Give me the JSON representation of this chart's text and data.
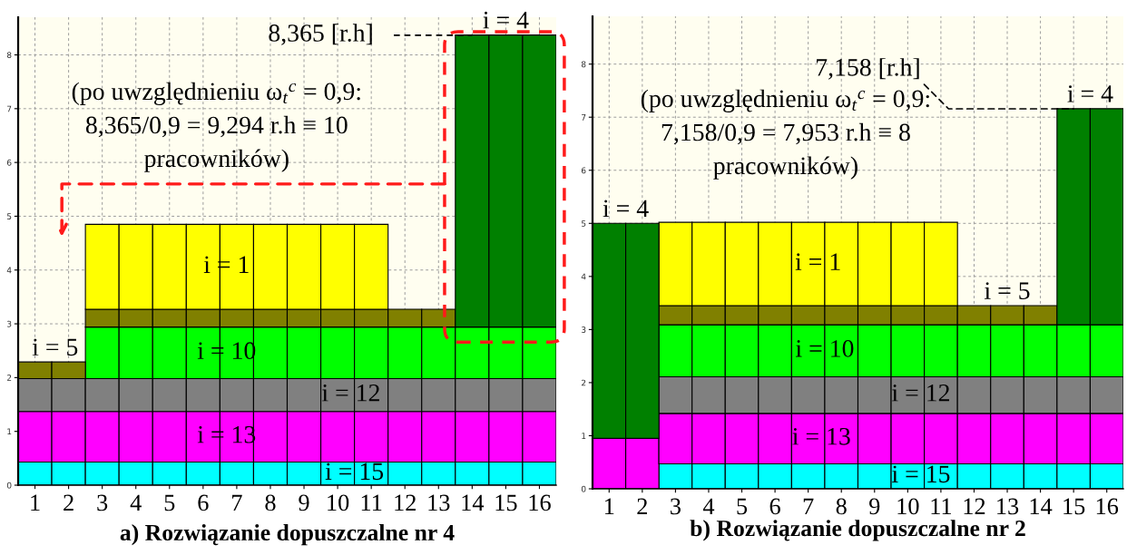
{
  "chart_data": [
    {
      "type": "bar",
      "stacked": true,
      "title": "a) Rozwiązanie dopuszczalne nr 4",
      "categories": [
        "1",
        "2",
        "3",
        "4",
        "5",
        "6",
        "7",
        "8",
        "9",
        "10",
        "11",
        "12",
        "13",
        "14",
        "15",
        "16"
      ],
      "series": [
        {
          "name": "i = 15",
          "color": "#00ffff",
          "values": [
            0.43,
            0.43,
            0.43,
            0.43,
            0.43,
            0.43,
            0.43,
            0.43,
            0.43,
            0.43,
            0.43,
            0.43,
            0.43,
            0.43,
            0.43,
            0.43
          ]
        },
        {
          "name": "i = 13",
          "color": "#ff00ff",
          "values": [
            0.94,
            0.94,
            0.94,
            0.94,
            0.94,
            0.94,
            0.94,
            0.94,
            0.94,
            0.94,
            0.94,
            0.94,
            0.94,
            0.94,
            0.94,
            0.94
          ]
        },
        {
          "name": "i = 12",
          "color": "#808080",
          "values": [
            0.61,
            0.61,
            0.61,
            0.61,
            0.61,
            0.61,
            0.61,
            0.61,
            0.61,
            0.61,
            0.61,
            0.61,
            0.61,
            0.61,
            0.61,
            0.61
          ]
        },
        {
          "name": "i = 10",
          "color": "#00ff00",
          "values": [
            null,
            null,
            0.96,
            0.96,
            0.96,
            0.96,
            0.96,
            0.96,
            0.96,
            0.96,
            0.96,
            0.96,
            0.96,
            0.96,
            0.96,
            0.96
          ]
        },
        {
          "name": "i = 5",
          "color": "#808000",
          "values": [
            0.31,
            0.31,
            0.33,
            0.33,
            0.33,
            0.33,
            0.33,
            0.33,
            0.33,
            0.33,
            0.33,
            0.33,
            0.33,
            null,
            null,
            null
          ]
        },
        {
          "name": "i = 1",
          "color": "#ffff00",
          "values": [
            null,
            null,
            1.58,
            1.58,
            1.58,
            1.58,
            1.58,
            1.58,
            1.58,
            1.58,
            1.58,
            null,
            null,
            null,
            null,
            null
          ]
        },
        {
          "name": "i = 4",
          "color": "#008000",
          "values": [
            null,
            null,
            null,
            null,
            null,
            null,
            null,
            null,
            null,
            null,
            null,
            null,
            null,
            5.43,
            5.43,
            5.43
          ]
        }
      ],
      "ylim": [
        0,
        8.7
      ],
      "yticks": [
        0,
        1,
        2,
        3,
        4,
        5,
        6,
        7,
        8
      ],
      "grid": true,
      "ref_lines": [
        {
          "axis": "y",
          "value": 8.365,
          "label": "8,365 [r.h]",
          "color": "#000000",
          "line_style": "dashed"
        }
      ],
      "annotations": [
        "(po uwzględnieniu ω$_{t}$$^{c}$ = 0,9:\n8,365/0,9 = 9,294 r.h ≡ 10\npracowników)"
      ]
    },
    {
      "type": "bar",
      "stacked": true,
      "title": "b) Rozwiązanie dopuszczalne nr 2",
      "categories": [
        "1",
        "2",
        "3",
        "4",
        "5",
        "6",
        "7",
        "8",
        "9",
        "10",
        "11",
        "12",
        "13",
        "14",
        "15",
        "16"
      ],
      "series": [
        {
          "name": "i = 15",
          "color": "#00ffff",
          "values": [
            null,
            null,
            0.47,
            0.47,
            0.47,
            0.47,
            0.47,
            0.47,
            0.47,
            0.47,
            0.47,
            0.47,
            0.47,
            0.47,
            0.47,
            0.47
          ]
        },
        {
          "name": "i = 13",
          "color": "#ff00ff",
          "values": [
            0.95,
            0.95,
            0.95,
            0.95,
            0.95,
            0.95,
            0.95,
            0.95,
            0.95,
            0.95,
            0.95,
            0.95,
            0.95,
            0.95,
            0.95,
            0.95
          ]
        },
        {
          "name": "i = 12",
          "color": "#808080",
          "values": [
            null,
            null,
            0.69,
            0.69,
            0.69,
            0.69,
            0.69,
            0.69,
            0.69,
            0.69,
            0.69,
            0.69,
            0.69,
            0.69,
            0.69,
            0.69
          ]
        },
        {
          "name": "i = 10",
          "color": "#00ff00",
          "values": [
            null,
            null,
            0.98,
            0.98,
            0.98,
            0.98,
            0.98,
            0.98,
            0.98,
            0.98,
            0.98,
            0.98,
            0.98,
            0.98,
            0.98,
            0.98
          ]
        },
        {
          "name": "i = 5",
          "color": "#808000",
          "values": [
            null,
            null,
            0.36,
            0.36,
            0.36,
            0.36,
            0.36,
            0.36,
            0.36,
            0.36,
            0.36,
            0.36,
            0.36,
            0.36,
            null,
            null
          ]
        },
        {
          "name": "i = 1",
          "color": "#ffff00",
          "values": [
            null,
            null,
            1.57,
            1.57,
            1.57,
            1.57,
            1.57,
            1.57,
            1.57,
            1.57,
            1.57,
            null,
            null,
            null,
            null,
            null
          ]
        },
        {
          "name": "i = 4",
          "color": "#008000",
          "values": [
            4.05,
            4.05,
            null,
            null,
            null,
            null,
            null,
            null,
            null,
            null,
            null,
            null,
            null,
            null,
            4.07,
            4.07
          ]
        }
      ],
      "ylim": [
        0,
        8.9
      ],
      "yticks": [
        0,
        1,
        2,
        3,
        4,
        5,
        6,
        7,
        8
      ],
      "grid": true,
      "annotations": [
        {
          "text": "7,158 [r.h]",
          "x": "15",
          "y": 7.158
        },
        "(po uwzględnieniu ω$_{t}$$^{c}$ = 0,9:\n7,158/0,9 = 7,953 r.h ≡ 8\npracowników)"
      ]
    }
  ]
}
